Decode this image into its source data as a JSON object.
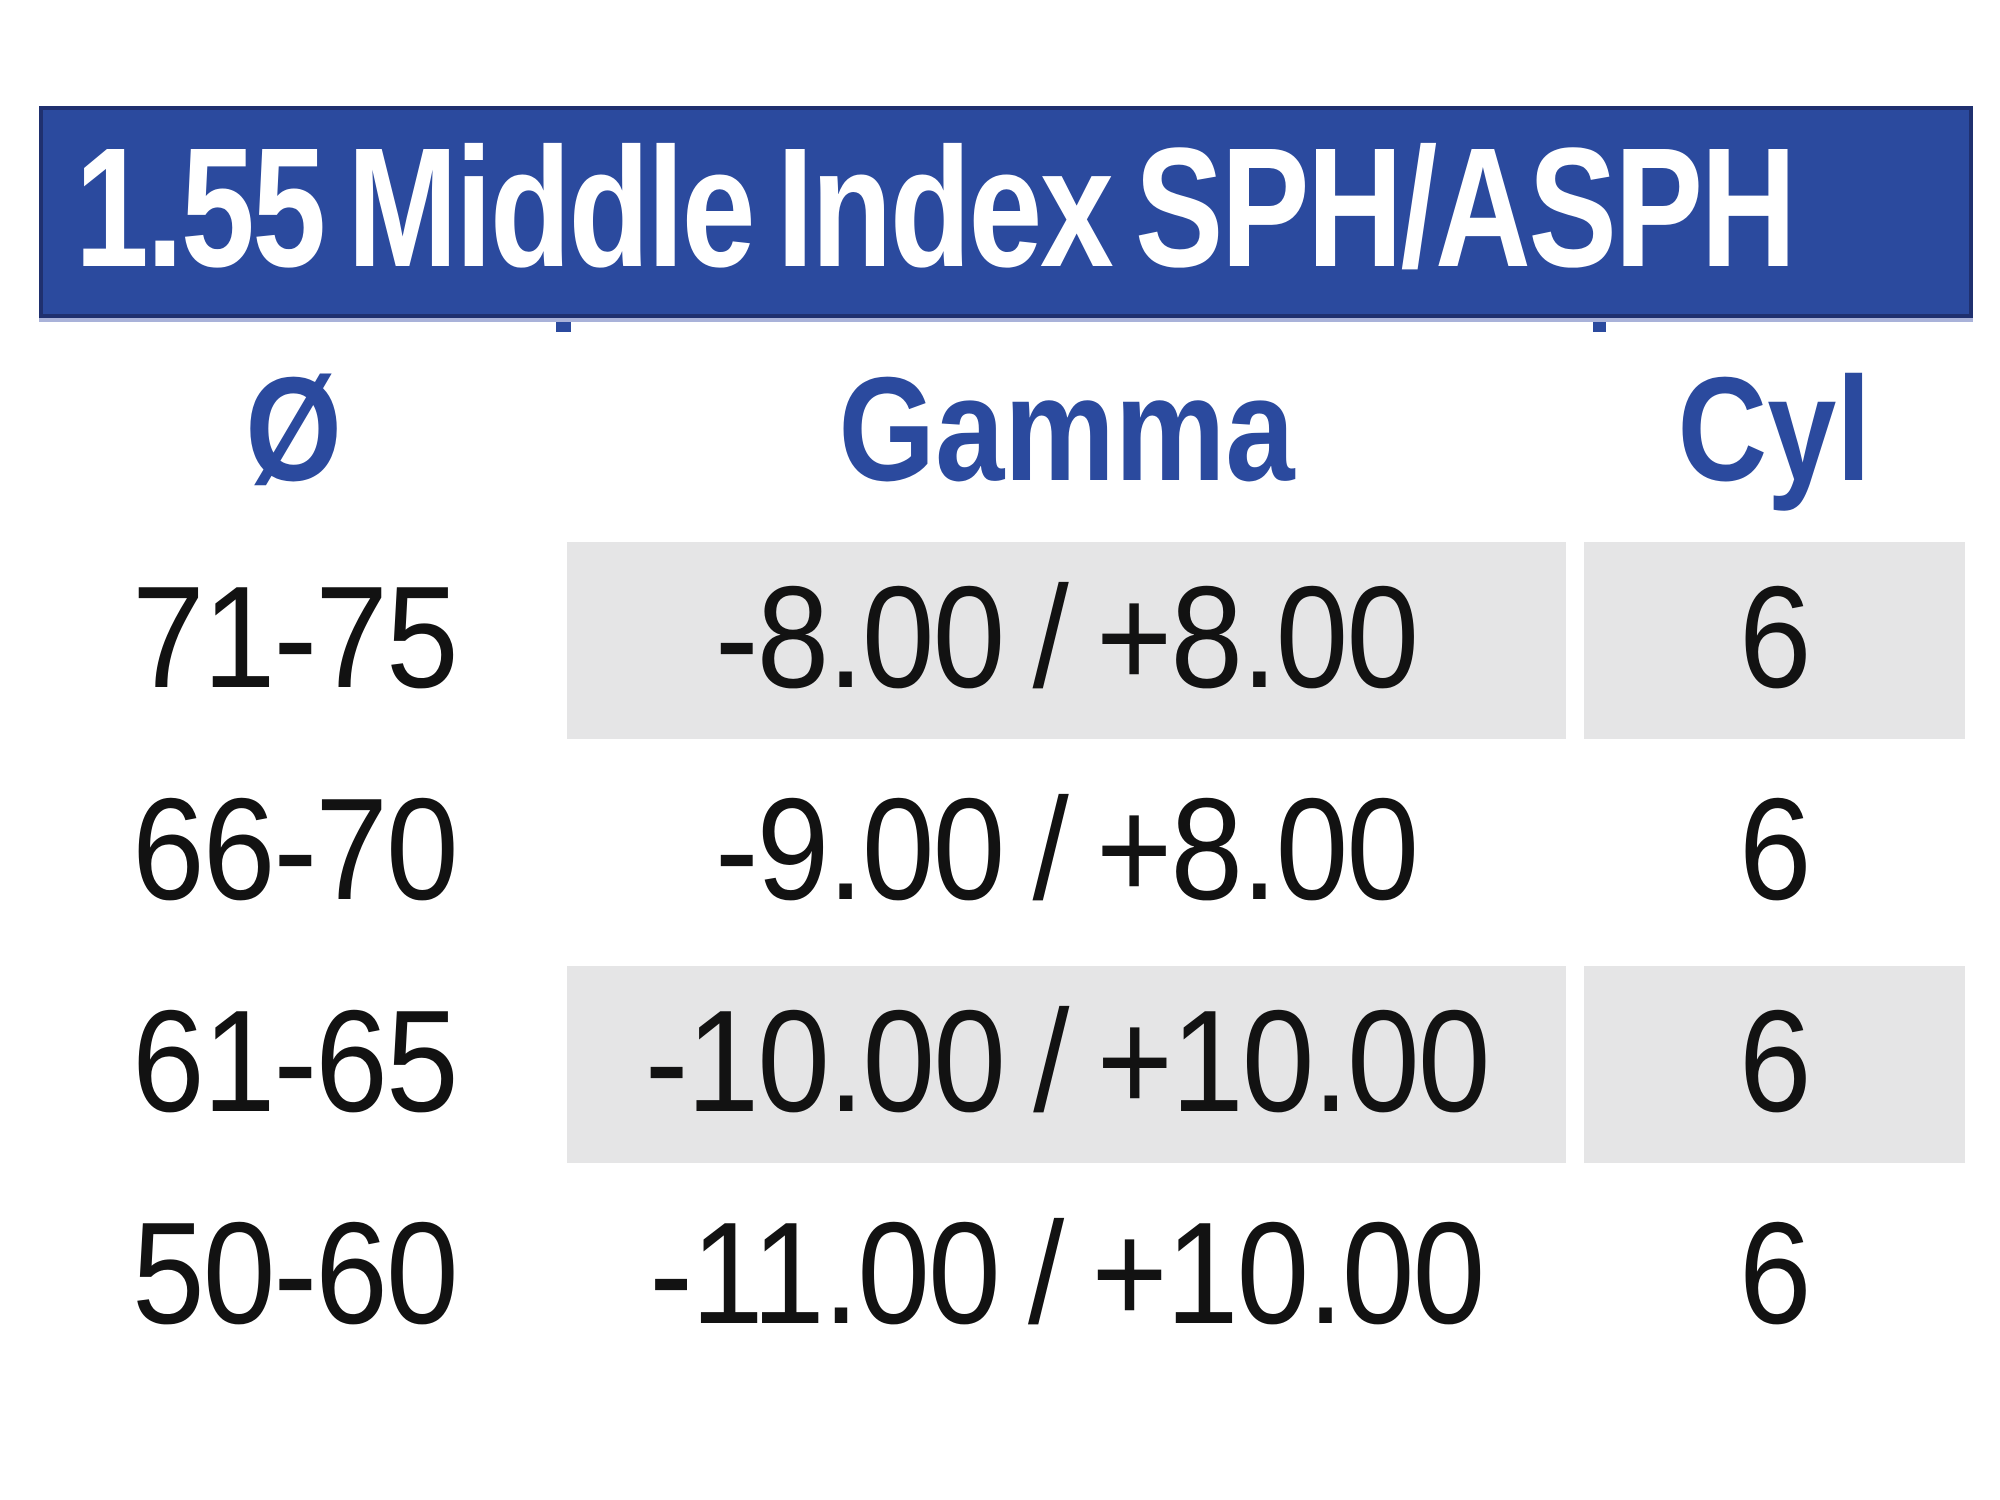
{
  "banner": {
    "title": "1.55 Middle Index SPH/ASPH"
  },
  "theme": {
    "accent": "#2b4a9e",
    "banner_border": "#1f306f",
    "banner_underline": "#a9b2d9",
    "shade": "#e5e5e6",
    "ink": "#121212"
  },
  "table": {
    "columns": [
      {
        "key": "diameter",
        "label": "Ø"
      },
      {
        "key": "gamma",
        "label": "Gamma"
      },
      {
        "key": "cyl",
        "label": "Cyl"
      }
    ],
    "rows": [
      {
        "diameter": "71-75",
        "gamma": "-8.00 / +8.00",
        "cyl": "6",
        "shaded": true
      },
      {
        "diameter": "66-70",
        "gamma": "-9.00 / +8.00",
        "cyl": "6",
        "shaded": false
      },
      {
        "diameter": "61-65",
        "gamma": "-10.00 / +10.00",
        "cyl": "6",
        "shaded": true
      },
      {
        "diameter": "50-60",
        "gamma": "-11.00 / +10.00",
        "cyl": "6",
        "shaded": false
      }
    ]
  }
}
